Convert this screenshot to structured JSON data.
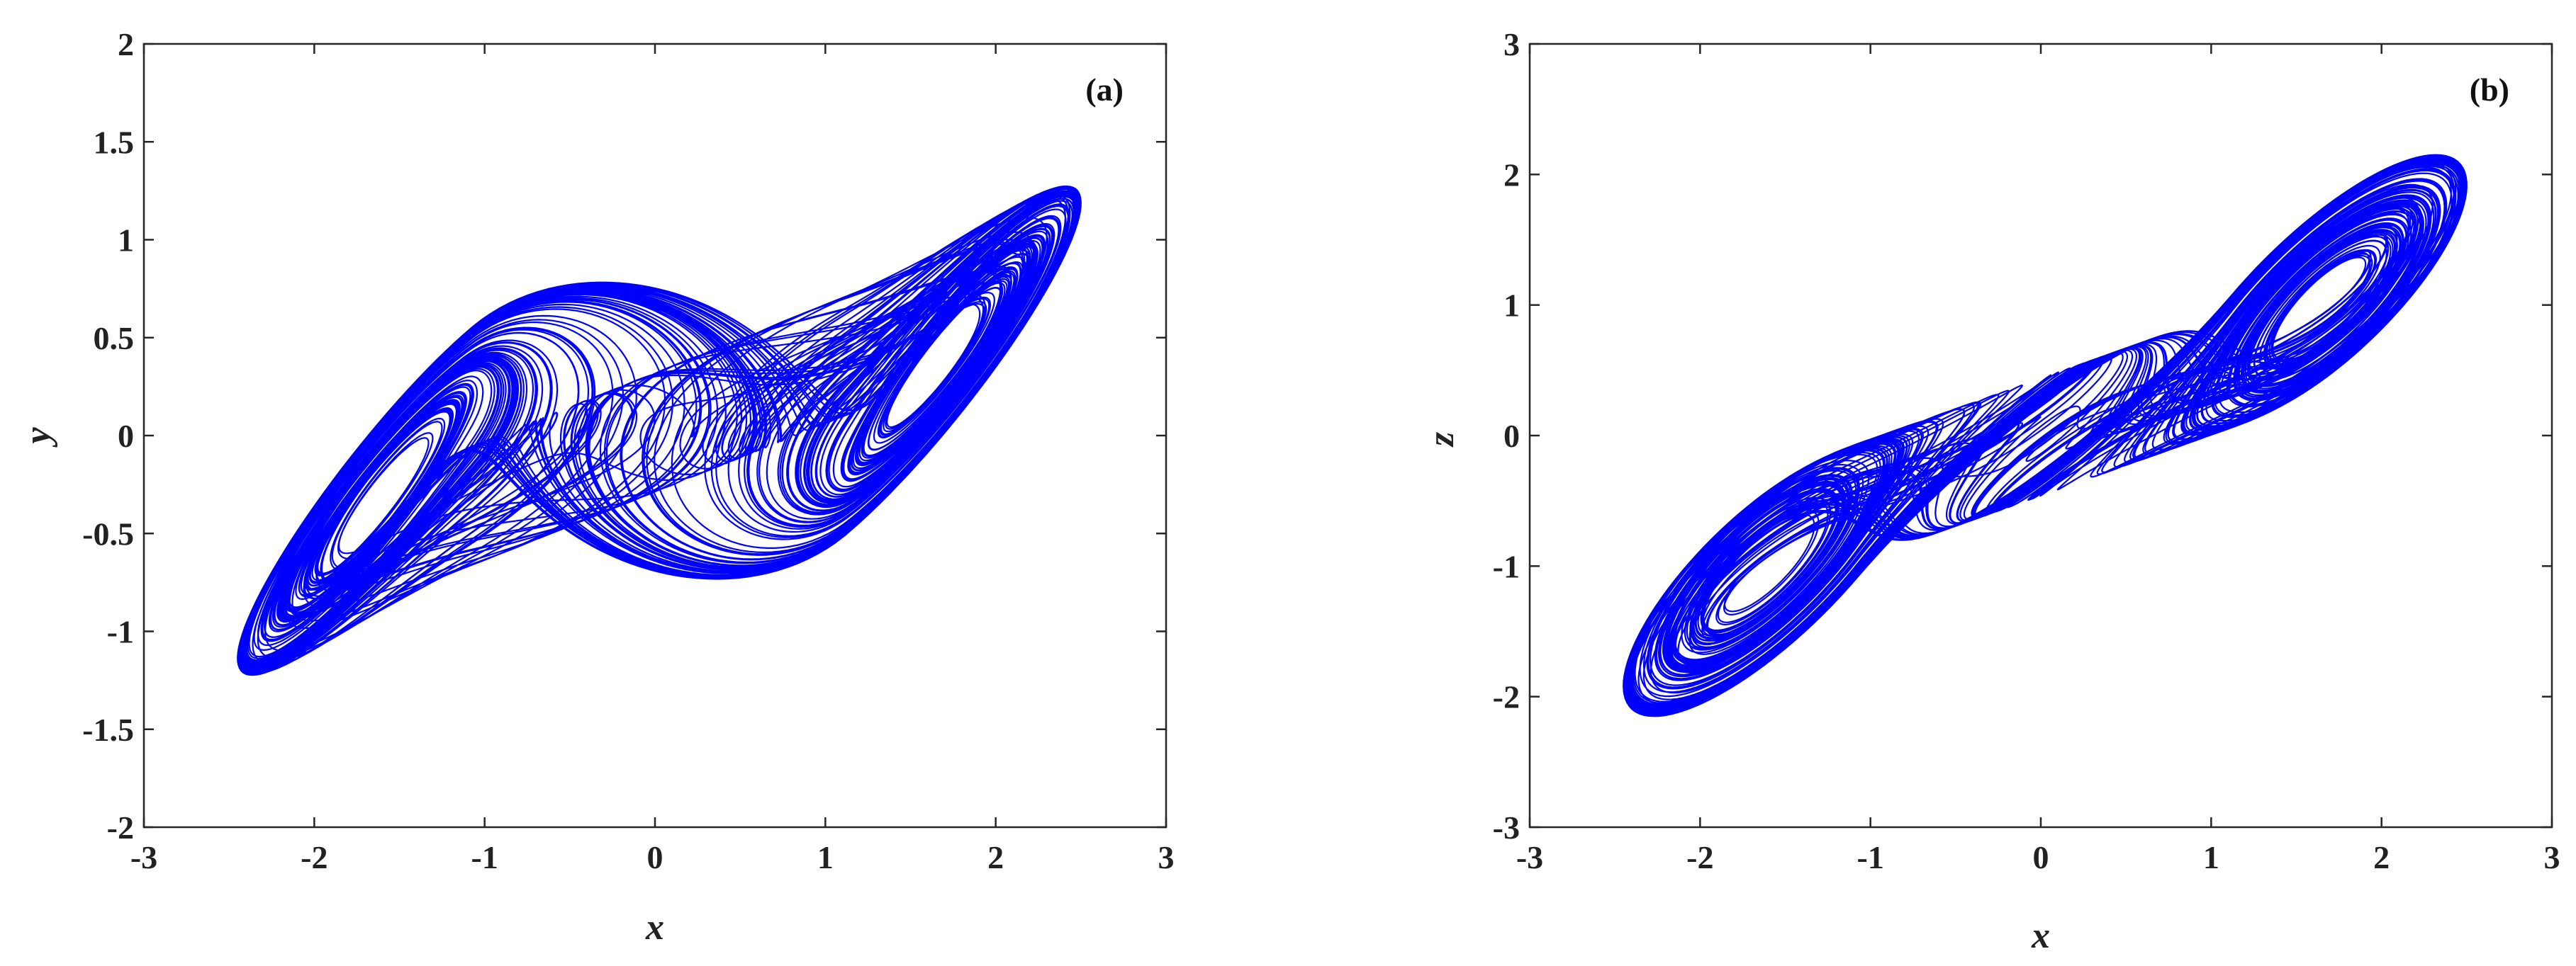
{
  "chart_data": [
    {
      "type": "line",
      "panel_label": "(a)",
      "xlabel": "x",
      "ylabel": "y",
      "xlim": [
        -3,
        3
      ],
      "ylim": [
        -2,
        2
      ],
      "xticks": [
        -3,
        -2,
        -1,
        0,
        1,
        2,
        3
      ],
      "yticks": [
        -2,
        -1.5,
        -1,
        -0.5,
        0,
        0.5,
        1,
        1.5,
        2
      ],
      "xtick_labels": [
        "-3",
        "-2",
        "-1",
        "0",
        "1",
        "2",
        "3"
      ],
      "ytick_labels": [
        "-2",
        "-1.5",
        "-1",
        "-0.5",
        "0",
        "0.5",
        "1",
        "1.5",
        "2"
      ],
      "grid": false,
      "series": [
        {
          "color": "#0000ff",
          "description_points": {
            "x_range": [
              -2.45,
              2.5
            ],
            "y_range": [
              -1.65,
              1.7
            ],
            "focus_left": [
              -0.72,
              0.0
            ],
            "focus_right": [
              0.68,
              0.05
            ]
          }
        }
      ]
    },
    {
      "type": "line",
      "panel_label": "(b)",
      "xlabel": "x",
      "ylabel": "z",
      "xlim": [
        -3,
        3
      ],
      "ylim": [
        -3,
        3
      ],
      "xticks": [
        -3,
        -2,
        -1,
        0,
        1,
        2,
        3
      ],
      "yticks": [
        -3,
        -2,
        -1,
        0,
        1,
        2,
        3
      ],
      "xtick_labels": [
        "-3",
        "-2",
        "-1",
        "0",
        "1",
        "2",
        "3"
      ],
      "ytick_labels": [
        "-3",
        "-2",
        "-1",
        "0",
        "1",
        "2",
        "3"
      ],
      "grid": false,
      "series": [
        {
          "color": "#0000ff",
          "description_points": {
            "x_range": [
              -2.45,
              2.5
            ],
            "y_range": [
              -2.15,
              2.15
            ],
            "focus_upper": [
              0.15,
              0.75
            ],
            "focus_lower": [
              -0.15,
              -0.82
            ]
          }
        }
      ]
    }
  ]
}
